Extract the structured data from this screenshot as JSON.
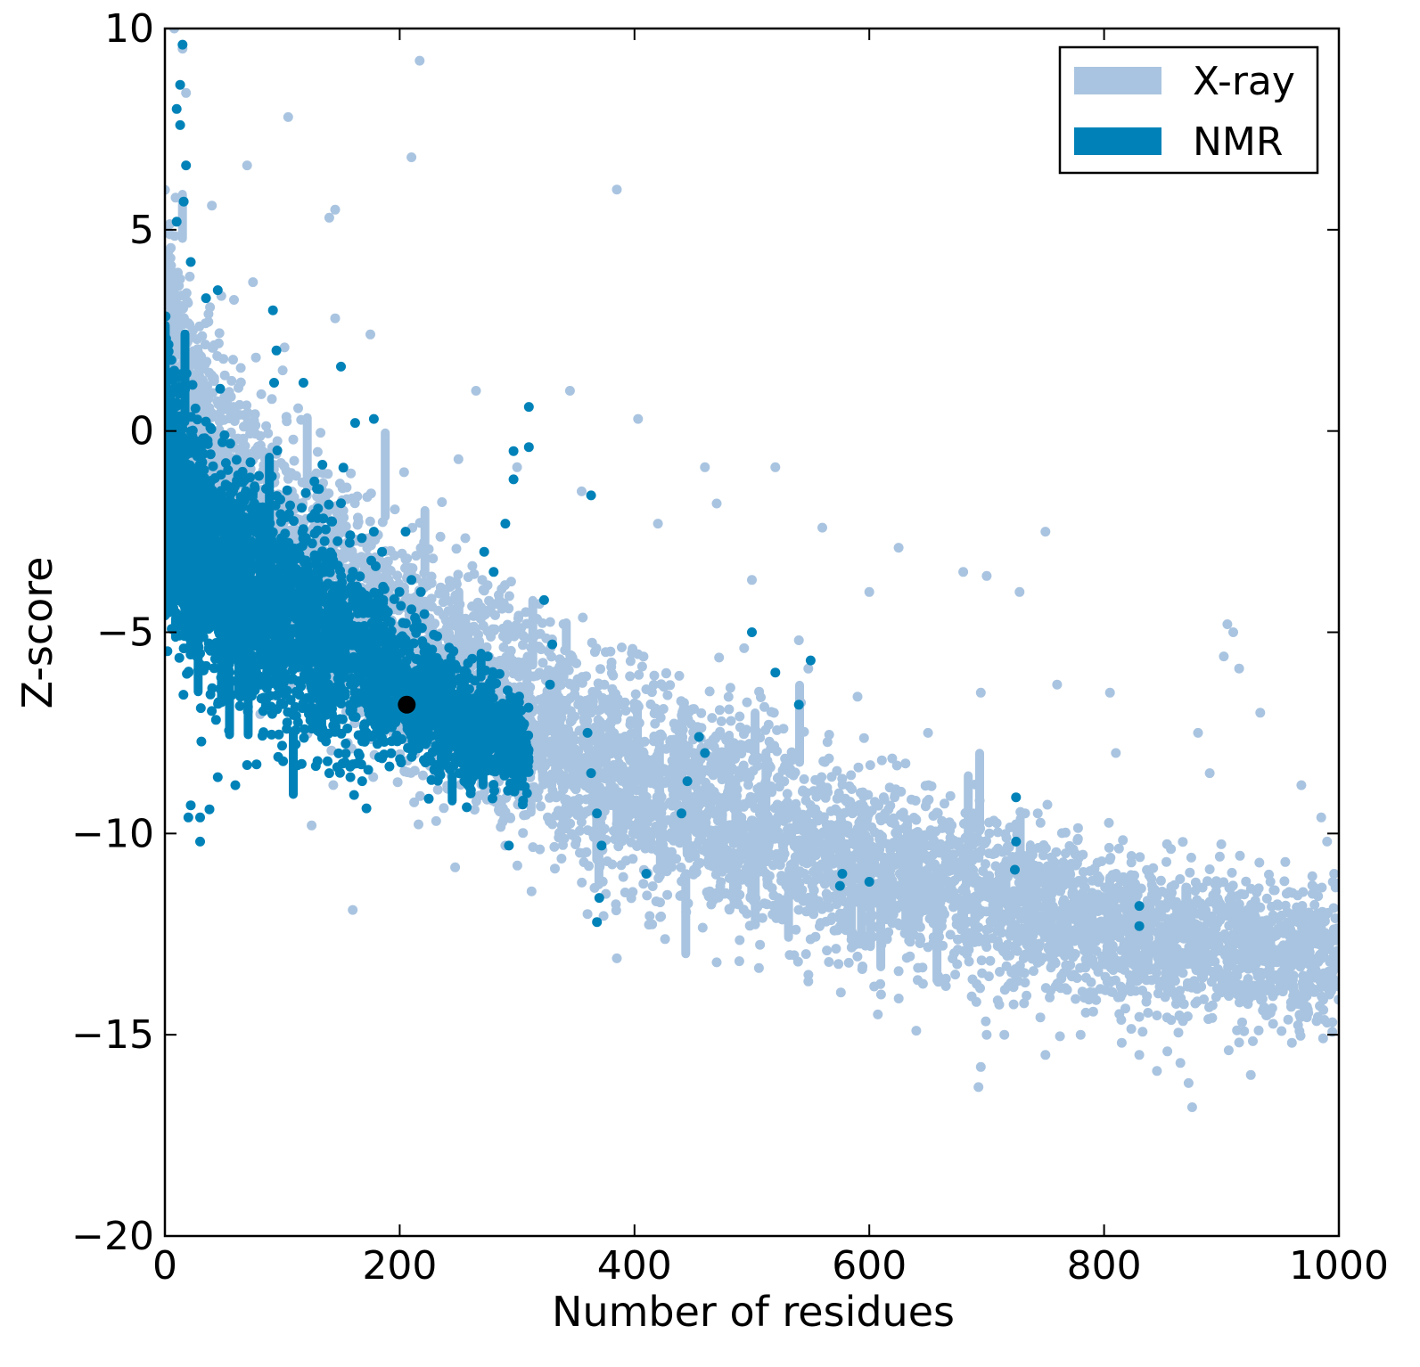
{
  "chart_data": {
    "type": "scatter",
    "xlabel": "Number of residues",
    "ylabel": "Z-score",
    "xlim": [
      0,
      1000
    ],
    "ylim": [
      -20,
      10
    ],
    "xticks": [
      0,
      200,
      400,
      600,
      800,
      1000
    ],
    "yticks": [
      10,
      5,
      0,
      -5,
      -10,
      -15,
      -20
    ],
    "ytick_labels": [
      "10",
      "5",
      "0",
      "−5",
      "−10",
      "−15",
      "−20"
    ],
    "grid": false,
    "legend_position": "top-right",
    "series": [
      {
        "name": "X-ray",
        "color": "#a9c4e0",
        "trend": [
          [
            0,
            1.5
          ],
          [
            50,
            -1.5
          ],
          [
            100,
            -3.0
          ],
          [
            150,
            -4.2
          ],
          [
            200,
            -5.5
          ],
          [
            250,
            -6.3
          ],
          [
            300,
            -7.3
          ],
          [
            350,
            -8.0
          ],
          [
            400,
            -8.8
          ],
          [
            450,
            -9.3
          ],
          [
            500,
            -9.8
          ],
          [
            550,
            -10.3
          ],
          [
            600,
            -10.8
          ],
          [
            650,
            -11.2
          ],
          [
            700,
            -11.6
          ],
          [
            750,
            -12.0
          ],
          [
            800,
            -12.3
          ],
          [
            850,
            -12.6
          ],
          [
            900,
            -12.8
          ],
          [
            950,
            -13.0
          ],
          [
            1000,
            -13.1
          ]
        ],
        "spread": [
          [
            0,
            3.0
          ],
          [
            100,
            2.6
          ],
          [
            200,
            2.5
          ],
          [
            300,
            2.4
          ],
          [
            400,
            2.4
          ],
          [
            500,
            2.2
          ],
          [
            600,
            2.0
          ],
          [
            700,
            1.9
          ],
          [
            800,
            1.7
          ],
          [
            900,
            1.6
          ],
          [
            1000,
            1.6
          ]
        ],
        "points": [
          [
            8,
            10.0
          ],
          [
            15,
            9.5
          ],
          [
            18,
            8.4
          ],
          [
            105,
            7.8
          ],
          [
            217,
            9.2
          ],
          [
            210,
            6.8
          ],
          [
            70,
            6.6
          ],
          [
            385,
            6.0
          ],
          [
            140,
            5.3
          ],
          [
            145,
            5.5
          ],
          [
            40,
            5.6
          ],
          [
            75,
            3.7
          ],
          [
            145,
            2.8
          ],
          [
            175,
            2.4
          ],
          [
            265,
            1.0
          ],
          [
            345,
            1.0
          ],
          [
            403,
            0.3
          ],
          [
            460,
            -0.9
          ],
          [
            520,
            -0.9
          ],
          [
            750,
            -2.5
          ],
          [
            625,
            -2.9
          ],
          [
            680,
            -3.5
          ],
          [
            700,
            -3.6
          ],
          [
            728,
            -4.0
          ],
          [
            905,
            -4.8
          ],
          [
            910,
            -5.0
          ],
          [
            902,
            -5.6
          ],
          [
            915,
            -5.9
          ],
          [
            933,
            -7.0
          ],
          [
            880,
            -7.5
          ],
          [
            890,
            -8.5
          ],
          [
            968,
            -8.8
          ],
          [
            985,
            -9.6
          ],
          [
            990,
            -10.2
          ],
          [
            996,
            -11.0
          ],
          [
            994,
            -12.5
          ],
          [
            992,
            -14.0
          ],
          [
            990,
            -14.7
          ],
          [
            960,
            -15.2
          ],
          [
            875,
            -16.8
          ],
          [
            872,
            -16.2
          ],
          [
            865,
            -15.7
          ],
          [
            845,
            -15.9
          ],
          [
            830,
            -15.5
          ],
          [
            815,
            -15.2
          ],
          [
            780,
            -15.0
          ],
          [
            750,
            -15.5
          ],
          [
            715,
            -15.0
          ],
          [
            695,
            -15.8
          ],
          [
            693,
            -16.3
          ],
          [
            700,
            -15.0
          ],
          [
            640,
            -14.9
          ],
          [
            610,
            -14.0
          ],
          [
            160,
            -11.9
          ],
          [
            125,
            -9.8
          ],
          [
            580,
            -12.4
          ],
          [
            470,
            -13.2
          ],
          [
            385,
            -13.1
          ],
          [
            805,
            -6.5
          ],
          [
            810,
            -8.0
          ],
          [
            760,
            -6.3
          ],
          [
            695,
            -6.5
          ],
          [
            650,
            -7.5
          ],
          [
            590,
            -6.6
          ],
          [
            540,
            -5.2
          ],
          [
            500,
            -3.7
          ],
          [
            420,
            -2.3
          ],
          [
            470,
            -1.8
          ],
          [
            355,
            -1.5
          ],
          [
            300,
            -0.9
          ],
          [
            250,
            -0.7
          ],
          [
            560,
            -2.4
          ],
          [
            600,
            -4.0
          ],
          [
            925,
            -16.0
          ],
          [
            850,
            -13.2
          ],
          [
            360,
            -12.0
          ],
          [
            290,
            -10.3
          ]
        ]
      },
      {
        "name": "NMR",
        "color": "#0082b8",
        "trend": [
          [
            0,
            -1.0
          ],
          [
            25,
            -2.8
          ],
          [
            50,
            -3.6
          ],
          [
            75,
            -4.3
          ],
          [
            100,
            -4.6
          ],
          [
            125,
            -5.1
          ],
          [
            150,
            -5.4
          ],
          [
            175,
            -5.9
          ],
          [
            200,
            -6.3
          ],
          [
            225,
            -6.8
          ],
          [
            250,
            -7.3
          ],
          [
            275,
            -7.5
          ],
          [
            300,
            -7.8
          ],
          [
            325,
            -8.4
          ],
          [
            350,
            -9.0
          ],
          [
            375,
            -9.5
          ]
        ],
        "spread": [
          [
            0,
            2.6
          ],
          [
            50,
            2.5
          ],
          [
            100,
            2.3
          ],
          [
            150,
            2.2
          ],
          [
            200,
            1.6
          ],
          [
            250,
            1.2
          ],
          [
            300,
            1.0
          ],
          [
            375,
            1.0
          ]
        ],
        "points": [
          [
            15,
            9.6
          ],
          [
            13,
            8.6
          ],
          [
            10,
            8.0
          ],
          [
            13,
            7.6
          ],
          [
            18,
            6.6
          ],
          [
            16,
            5.7
          ],
          [
            10,
            5.2
          ],
          [
            22,
            4.2
          ],
          [
            45,
            3.5
          ],
          [
            35,
            3.3
          ],
          [
            92,
            3.0
          ],
          [
            95,
            2.0
          ],
          [
            93,
            1.2
          ],
          [
            118,
            1.2
          ],
          [
            150,
            1.6
          ],
          [
            162,
            0.2
          ],
          [
            178,
            0.3
          ],
          [
            178,
            -2.5
          ],
          [
            185,
            -3.0
          ],
          [
            190,
            -4.5
          ],
          [
            205,
            -2.5
          ],
          [
            210,
            -3.7
          ],
          [
            218,
            -4.0
          ],
          [
            232,
            -5.1
          ],
          [
            240,
            -6.0
          ],
          [
            250,
            -6.2
          ],
          [
            258,
            -6.8
          ],
          [
            262,
            -7.3
          ],
          [
            268,
            -6.5
          ],
          [
            275,
            -5.6
          ],
          [
            272,
            -3.0
          ],
          [
            280,
            -3.5
          ],
          [
            290,
            -2.3
          ],
          [
            297,
            -1.2
          ],
          [
            297,
            -0.5
          ],
          [
            310,
            0.6
          ],
          [
            310,
            -0.4
          ],
          [
            330,
            -5.3
          ],
          [
            328,
            -6.3
          ],
          [
            323,
            -4.2
          ],
          [
            363,
            -1.6
          ],
          [
            360,
            -7.5
          ],
          [
            363,
            -8.5
          ],
          [
            368,
            -9.5
          ],
          [
            372,
            -10.3
          ],
          [
            370,
            -11.6
          ],
          [
            368,
            -12.2
          ],
          [
            410,
            -11.0
          ],
          [
            445,
            -8.7
          ],
          [
            455,
            -7.6
          ],
          [
            460,
            -8.0
          ],
          [
            440,
            -9.5
          ],
          [
            500,
            -5.0
          ],
          [
            520,
            -6.0
          ],
          [
            540,
            -6.8
          ],
          [
            550,
            -5.7
          ],
          [
            577,
            -11.0
          ],
          [
            575,
            -11.3
          ],
          [
            600,
            -11.2
          ],
          [
            725,
            -9.1
          ],
          [
            725,
            -10.2
          ],
          [
            724,
            -10.9
          ],
          [
            830,
            -11.8
          ],
          [
            830,
            -12.3
          ],
          [
            293,
            -10.3
          ],
          [
            30,
            -10.2
          ],
          [
            30,
            -9.6
          ],
          [
            38,
            -9.4
          ],
          [
            45,
            -8.6
          ],
          [
            20,
            -9.6
          ],
          [
            22,
            -9.3
          ],
          [
            70,
            -8.3
          ],
          [
            130,
            -8.2
          ],
          [
            140,
            -8.5
          ],
          [
            158,
            -8.6
          ],
          [
            168,
            -8.7
          ],
          [
            60,
            -8.8
          ],
          [
            12,
            -3.5
          ],
          [
            14,
            -4.0
          ],
          [
            16,
            -4.6
          ],
          [
            17,
            -5.0
          ],
          [
            16,
            -5.4
          ],
          [
            5,
            -2.0
          ],
          [
            8,
            1.5
          ]
        ]
      }
    ],
    "highlight": {
      "x": 206,
      "y": -6.8,
      "color": "#000000"
    }
  }
}
